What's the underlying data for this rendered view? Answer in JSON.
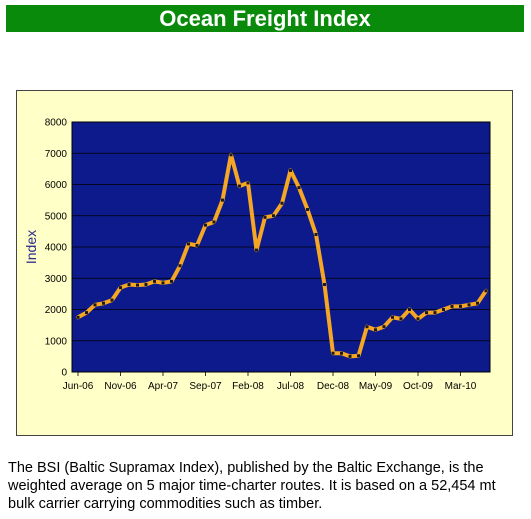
{
  "header": {
    "title": "Ocean Freight Index"
  },
  "caption": {
    "text": "The BSI (Baltic Supramax Index), published by the Baltic Exchange, is the weighted average on 5 major time-charter routes. It is based on a 52,454 mt bulk carrier carrying commodities such as timber."
  },
  "colors": {
    "plot_bg": "#0c1a8c",
    "frame_bg": "#ffffc8",
    "line": "#f5a623",
    "title_bg": "#0a8a0a"
  },
  "chart_data": {
    "type": "line",
    "title": "",
    "xlabel": "",
    "ylabel": "Index",
    "ylim": [
      0,
      8000
    ],
    "yticks": [
      0,
      1000,
      2000,
      3000,
      4000,
      5000,
      6000,
      7000,
      8000
    ],
    "grid": true,
    "legend": "none",
    "xtick_labels": [
      "Jun-06",
      "Nov-06",
      "Apr-07",
      "Sep-07",
      "Feb-08",
      "Jul-08",
      "Dec-08",
      "May-09",
      "Oct-09",
      "Mar-10"
    ],
    "series": [
      {
        "values": [
          1750,
          1900,
          2150,
          2200,
          2300,
          2700,
          2800,
          2780,
          2800,
          2900,
          2850,
          2900,
          3400,
          4100,
          4050,
          4700,
          4800,
          5500,
          6950,
          5950,
          6050,
          3900,
          4950,
          5000,
          5400,
          6450,
          5900,
          5200,
          4400,
          2800,
          600,
          600,
          500,
          520,
          1450,
          1350,
          1450,
          1750,
          1700,
          2000,
          1700,
          1900,
          1900,
          2000,
          2100,
          2100,
          2150,
          2200,
          2600
        ]
      }
    ]
  }
}
